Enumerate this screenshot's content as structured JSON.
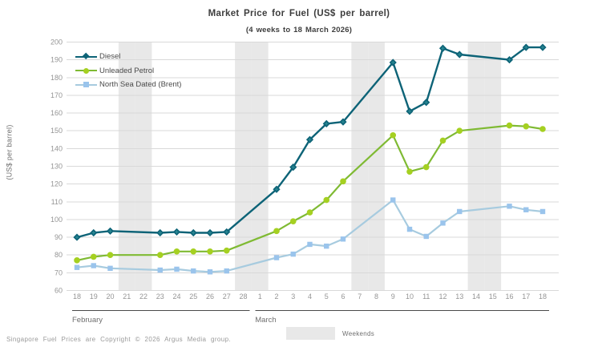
{
  "title": "Market Price for Fuel (US$ per barrel)",
  "subtitle": "(4 weeks to 18 March 2026)",
  "ylabel": "(US$ per barrel)",
  "footer": {
    "copyright": "Singapore Fuel Prices are Copyright © 2026 Argus Media group.",
    "weekends_label": "Weekends"
  },
  "colors": {
    "grid": "#d9d9d9",
    "weekend_band": "#e8e8e8",
    "axis_text": "#959595",
    "month_text": "#6e6e6e",
    "month_line": "#4a4a4a"
  },
  "chart_data": {
    "type": "line",
    "title": "Market Price for Fuel (US$ per barrel)",
    "subtitle": "(4 weeks to 18 March 2026)",
    "ylabel": "(US$ per barrel)",
    "ylim": [
      60,
      200
    ],
    "ytick_step": 10,
    "grid": true,
    "legend_position": "top-left",
    "x_categories": [
      "18",
      "19",
      "20",
      "21",
      "22",
      "23",
      "24",
      "25",
      "26",
      "27",
      "28",
      "1",
      "2",
      "3",
      "4",
      "5",
      "6",
      "7",
      "8",
      "9",
      "10",
      "11",
      "12",
      "13",
      "14",
      "15",
      "16",
      "17",
      "18"
    ],
    "month_groups": [
      {
        "label": "February",
        "start": 0,
        "end": 10
      },
      {
        "label": "March",
        "start": 11,
        "end": 28
      }
    ],
    "weekend_indices": [
      3,
      4,
      10,
      11,
      17,
      18,
      24,
      25
    ],
    "weekend_note": "Weekends are shaded; no price points on weekend dates",
    "series": [
      {
        "name": "Diesel",
        "color": "#0d6377",
        "marker_color": "#0d6377",
        "marker_accent": "#2f8e97",
        "marker": "diamond",
        "values": [
          90,
          92.5,
          93.5,
          null,
          null,
          92.5,
          93,
          92.5,
          92.5,
          93,
          null,
          null,
          117,
          129.5,
          145,
          154,
          155,
          null,
          null,
          188.5,
          161,
          166,
          196.5,
          193,
          null,
          null,
          190,
          197,
          197
        ]
      },
      {
        "name": "Unleaded Petrol",
        "color": "#7fba33",
        "marker_color": "#a5d021",
        "marker": "circle",
        "values": [
          77,
          79,
          80,
          null,
          null,
          80,
          82,
          82,
          82,
          82.5,
          null,
          null,
          93.5,
          99,
          104,
          111,
          121.5,
          null,
          null,
          147.5,
          127,
          129.5,
          144.5,
          150,
          null,
          null,
          153,
          152.5,
          151
        ]
      },
      {
        "name": "North Sea Dated (Brent)",
        "color": "#a7cbdf",
        "marker_color": "#9ac4ec",
        "marker": "square",
        "values": [
          73,
          74,
          72.5,
          null,
          null,
          71.5,
          72,
          71,
          70.5,
          71,
          null,
          null,
          78.5,
          80.5,
          86,
          85,
          89,
          null,
          null,
          111,
          94.5,
          90.5,
          98,
          104.5,
          null,
          null,
          107.5,
          105.5,
          104.5
        ]
      }
    ]
  }
}
